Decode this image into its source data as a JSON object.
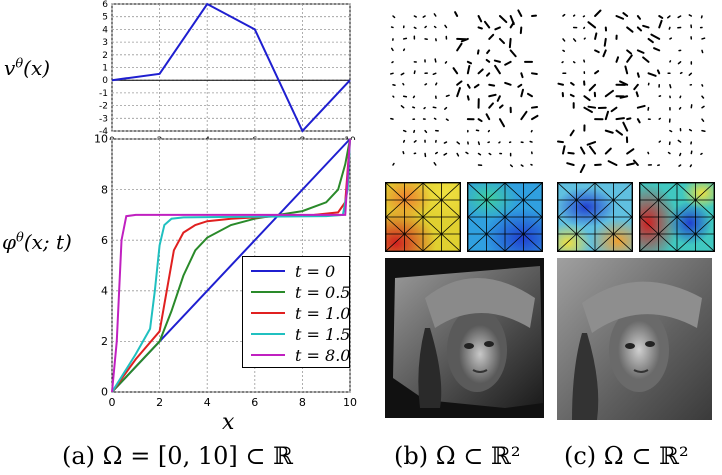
{
  "captions": {
    "a": "(a) Ω = [0, 10] ⊂ ℝ",
    "b": "(b) Ω ⊂ ℝ²",
    "c": "(c) Ω ⊂ ℝ²"
  },
  "chart_data": [
    {
      "type": "line",
      "ylabel": "v^θ(x)",
      "xlabel": "",
      "xlim": [
        0,
        10
      ],
      "ylim": [
        -4,
        6
      ],
      "xticks": [
        0,
        2,
        4,
        6,
        8,
        10
      ],
      "yticks": [
        6,
        5,
        4,
        3,
        2,
        1,
        0,
        -1,
        -2,
        -3,
        -4
      ],
      "grid": true,
      "series": [
        {
          "color": "#1f1fd0",
          "x": [
            0,
            2,
            4,
            6,
            8,
            10
          ],
          "y": [
            0,
            0.5,
            6,
            4,
            -4,
            0
          ]
        }
      ],
      "hlines": [
        0
      ]
    },
    {
      "type": "line",
      "ylabel": "φ^θ(x; t)",
      "xlabel": "x",
      "xlim": [
        0,
        10
      ],
      "ylim": [
        0,
        10
      ],
      "xticks": [
        0,
        2,
        4,
        6,
        8,
        10
      ],
      "yticks": [
        0,
        2,
        4,
        6,
        8,
        10
      ],
      "grid": true,
      "legend_position": "bottom-right",
      "series": [
        {
          "name": "t = 0",
          "color": "#1f1fd0",
          "x": [
            0,
            10
          ],
          "y": [
            0,
            10
          ]
        },
        {
          "name": "t = 0.5",
          "color": "#2a8a2a",
          "x": [
            0,
            1,
            2,
            2.5,
            3,
            3.5,
            4,
            5,
            6,
            7,
            8,
            9,
            9.5,
            9.8,
            10
          ],
          "y": [
            0,
            1,
            2,
            3.2,
            4.6,
            5.6,
            6.1,
            6.6,
            6.85,
            7.0,
            7.15,
            7.5,
            8.0,
            9.0,
            10
          ]
        },
        {
          "name": "t = 1.0",
          "color": "#e02020",
          "x": [
            0,
            1,
            2,
            2.3,
            2.6,
            3,
            3.5,
            4,
            5,
            7,
            8.5,
            9.5,
            9.8,
            10
          ],
          "y": [
            0,
            1.3,
            2.4,
            4.0,
            5.6,
            6.3,
            6.6,
            6.75,
            6.85,
            6.95,
            7.0,
            7.1,
            7.5,
            10
          ]
        },
        {
          "name": "t = 1.5",
          "color": "#20c0c0",
          "x": [
            0,
            1,
            1.6,
            1.8,
            2.0,
            2.2,
            2.5,
            3,
            5,
            9,
            9.7,
            9.9,
            10
          ],
          "y": [
            0,
            1.5,
            2.5,
            4.0,
            5.8,
            6.6,
            6.85,
            6.9,
            6.92,
            6.95,
            7.0,
            8.0,
            10
          ]
        },
        {
          "name": "t = 8.0",
          "color": "#c020c0",
          "x": [
            0,
            0.2,
            0.3,
            0.4,
            0.6,
            1,
            5,
            9.8,
            9.9,
            10
          ],
          "y": [
            0,
            2.0,
            4.0,
            6.0,
            6.95,
            7.0,
            7.0,
            7.0,
            8.5,
            10
          ]
        }
      ]
    }
  ],
  "colors": {
    "heat_high": "#d02020",
    "heat_mid": "#40d0a0",
    "heat_low": "#2040d0"
  }
}
